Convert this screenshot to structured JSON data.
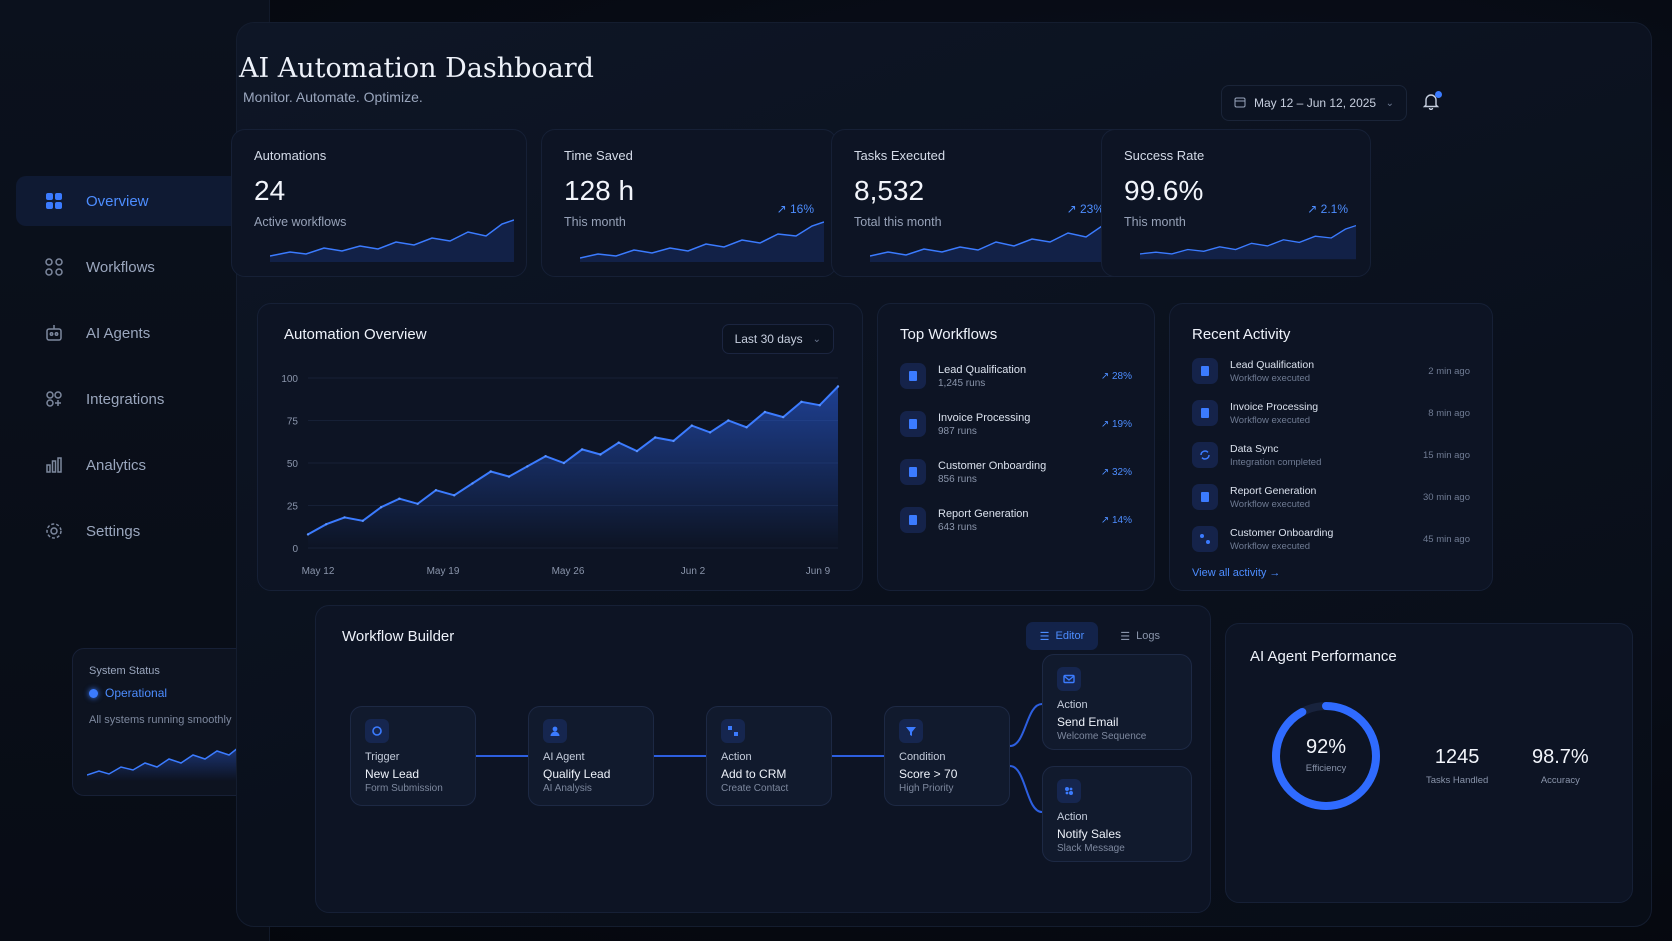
{
  "header": {
    "title": "AI Automation Dashboard",
    "subtitle": "Monitor. Automate. Optimize.",
    "date_range": "May 12 – Jun 12, 2025"
  },
  "sidebar": {
    "items": [
      {
        "label": "Overview",
        "icon": "grid-icon",
        "active": true
      },
      {
        "label": "Workflows",
        "icon": "nodes-icon",
        "active": false
      },
      {
        "label": "AI Agents",
        "icon": "robot-icon",
        "active": false
      },
      {
        "label": "Integrations",
        "icon": "puzzle-icon",
        "active": false
      },
      {
        "label": "Analytics",
        "icon": "bar-chart-icon",
        "active": false
      },
      {
        "label": "Settings",
        "icon": "gear-icon",
        "active": false
      }
    ],
    "status": {
      "title": "System Status",
      "state": "Operational",
      "message": "All systems running smoothly"
    }
  },
  "kpis": [
    {
      "label": "Automations",
      "value": "24",
      "sub": "Active workflows",
      "delta": ""
    },
    {
      "label": "Time Saved",
      "value": "128 h",
      "sub": "This month",
      "delta": "↗ 16%"
    },
    {
      "label": "Tasks Executed",
      "value": "8,532",
      "sub": "Total this month",
      "delta": "↗ 23%"
    },
    {
      "label": "Success Rate",
      "value": "99.6%",
      "sub": "This month",
      "delta": "↗ 2.1%"
    }
  ],
  "overview": {
    "title": "Automation Overview",
    "range": "Last 30 days"
  },
  "chart_data": {
    "type": "area",
    "title": "Automation Overview",
    "x_ticks": [
      "May 12",
      "May 19",
      "May 26",
      "Jun 2",
      "Jun 9"
    ],
    "y_ticks": [
      0,
      25,
      50,
      75,
      100
    ],
    "ylim": [
      0,
      100
    ],
    "grid": true,
    "values": [
      8,
      14,
      18,
      16,
      24,
      29,
      26,
      34,
      31,
      38,
      45,
      42,
      48,
      54,
      50,
      58,
      55,
      62,
      57,
      65,
      63,
      72,
      68,
      75,
      71,
      80,
      77,
      86,
      84,
      95
    ]
  },
  "top_workflows": {
    "title": "Top Workflows",
    "items": [
      {
        "name": "Lead Qualification",
        "runs": "1,245 runs",
        "delta": "↗ 28%"
      },
      {
        "name": "Invoice Processing",
        "runs": "987 runs",
        "delta": "↗ 19%"
      },
      {
        "name": "Customer Onboarding",
        "runs": "856 runs",
        "delta": "↗ 32%"
      },
      {
        "name": "Report Generation",
        "runs": "643 runs",
        "delta": "↗ 14%"
      }
    ]
  },
  "recent_activity": {
    "title": "Recent Activity",
    "items": [
      {
        "name": "Lead Qualification",
        "status": "Workflow executed",
        "time": "2 min ago"
      },
      {
        "name": "Invoice Processing",
        "status": "Workflow executed",
        "time": "8 min ago"
      },
      {
        "name": "Data Sync",
        "status": "Integration completed",
        "time": "15 min ago"
      },
      {
        "name": "Report Generation",
        "status": "Workflow executed",
        "time": "30 min ago"
      },
      {
        "name": "Customer Onboarding",
        "status": "Workflow executed",
        "time": "45 min ago"
      }
    ],
    "view_all": "View all activity →"
  },
  "builder": {
    "title": "Workflow Builder",
    "tabs": [
      "Editor",
      "Logs"
    ],
    "nodes": [
      {
        "kind": "Trigger",
        "title": "New Lead",
        "sub": "Form Submission"
      },
      {
        "kind": "AI Agent",
        "title": "Qualify Lead",
        "sub": "AI Analysis"
      },
      {
        "kind": "Action",
        "title": "Add to CRM",
        "sub": "Create Contact"
      },
      {
        "kind": "Condition",
        "title": "Score > 70",
        "sub": "High Priority"
      },
      {
        "kind": "Action",
        "title": "Send Email",
        "sub": "Welcome Sequence"
      },
      {
        "kind": "Action",
        "title": "Notify Sales",
        "sub": "Slack Message"
      }
    ]
  },
  "performance": {
    "title": "AI Agent Performance",
    "efficiency": "92%",
    "efficiency_value": 0.92,
    "efficiency_label": "Efficiency",
    "tasks": "1245",
    "tasks_label": "Tasks Handled",
    "accuracy": "98.7%",
    "accuracy_label": "Accuracy"
  },
  "colors": {
    "accent": "#3b7bff",
    "background": "#070b14",
    "card": "#0d1424"
  }
}
